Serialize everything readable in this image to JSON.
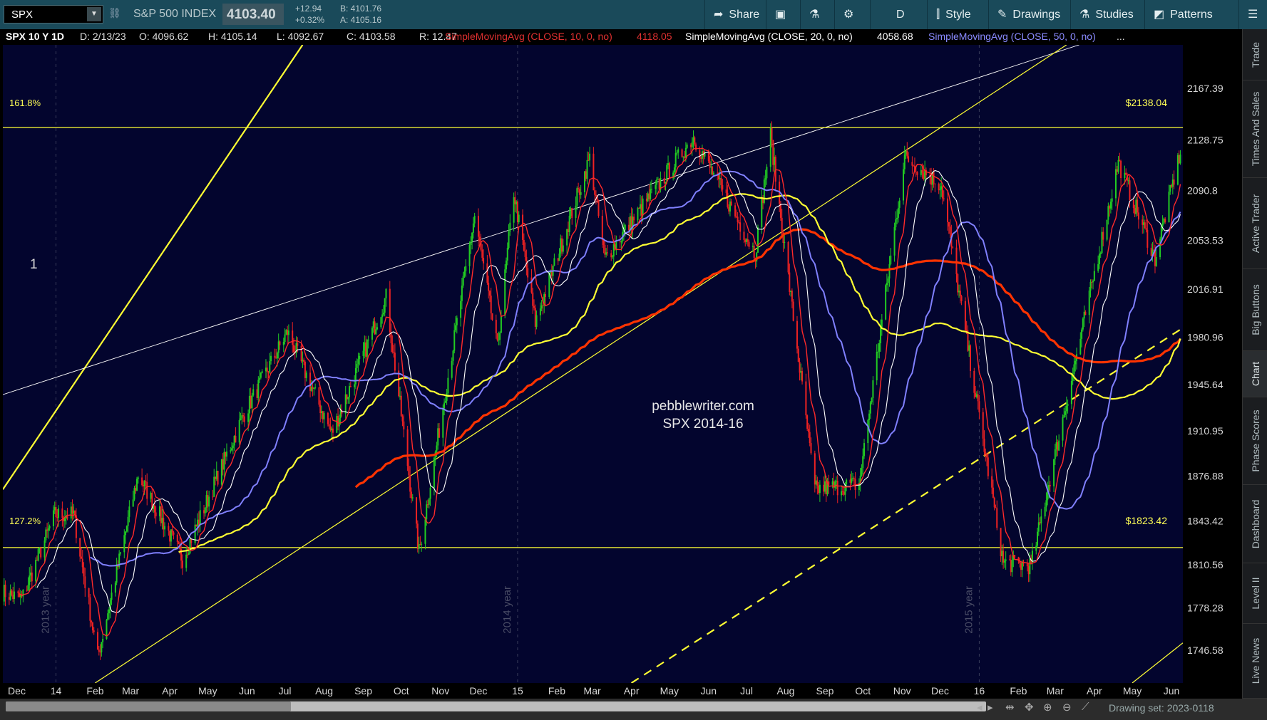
{
  "toolbar": {
    "symbol": "SPX",
    "index_name": "S&P 500 INDEX",
    "last": "4103.40",
    "change": "+12.94",
    "change_pct": "+0.32%",
    "bid": "B: 4101.76",
    "ask": "A: 4105.16",
    "buttons": {
      "share": "Share",
      "period": "D",
      "style": "Style",
      "drawings": "Drawings",
      "studies": "Studies",
      "patterns": "Patterns"
    }
  },
  "info_bar": {
    "symbol_period": "SPX 10 Y 1D",
    "date": "D: 2/13/23",
    "open": "O: 4096.62",
    "high": "H: 4105.14",
    "low": "L: 4092.67",
    "close": "C: 4103.58",
    "range": "R: 12.47",
    "sma10_label": "SimpleMovingAvg (CLOSE, 10, 0, no)",
    "sma10_value": "4118.05",
    "sma20_label": "SimpleMovingAvg (CLOSE, 20, 0, no)",
    "sma20_value": "4058.68",
    "sma50_label": "SimpleMovingAvg (CLOSE, 50, 0, no)",
    "more": "..."
  },
  "colors": {
    "sma10": "#ff2a2a",
    "sma20": "#ffffff",
    "sma50": "#8080ff",
    "sma100": "#ffff33",
    "sma200": "#ff3300",
    "fib": "#ffff33",
    "background": "#03052e"
  },
  "chart": {
    "fib_upper_pct": "161.8%",
    "fib_upper_price": "$2138.04",
    "fib_lower_pct": "127.2%",
    "fib_lower_price": "$1823.42",
    "marker_1": "1",
    "watermark_line1": "pebblewriter.com",
    "watermark_line2": "SPX 2014-16",
    "year_labels": [
      "2013 year",
      "2014 year",
      "2015 year"
    ]
  },
  "chart_data": {
    "type": "candlestick",
    "title": "SPX 10 Y 1D",
    "ylim": [
      1722,
      2200
    ],
    "y_ticks": [
      "2167.39",
      "2128.75",
      "2090.8",
      "2053.53",
      "2016.91",
      "1980.96",
      "1945.64",
      "1910.95",
      "1876.88",
      "1843.42",
      "1810.56",
      "1778.28",
      "1746.58"
    ],
    "x_ticks": [
      "Dec",
      "14",
      "Feb",
      "Mar",
      "Apr",
      "May",
      "Jun",
      "Jul",
      "Aug",
      "Sep",
      "Oct",
      "Nov",
      "Dec",
      "15",
      "Feb",
      "Mar",
      "Apr",
      "May",
      "Jun",
      "Jul",
      "Aug",
      "Sep",
      "Oct",
      "Nov",
      "Dec",
      "16",
      "Feb",
      "Mar",
      "Apr",
      "May",
      "Jun"
    ],
    "x_range": [
      "2013-11-20",
      "2016-06-10"
    ],
    "price_path": [
      [
        "2013-11-20",
        1790
      ],
      [
        "2013-12-05",
        1785
      ],
      [
        "2013-12-31",
        1848
      ],
      [
        "2014-01-15",
        1848
      ],
      [
        "2014-02-03",
        1741
      ],
      [
        "2014-03-07",
        1878
      ],
      [
        "2014-04-11",
        1815
      ],
      [
        "2014-05-30",
        1924
      ],
      [
        "2014-07-03",
        1985
      ],
      [
        "2014-08-07",
        1909
      ],
      [
        "2014-09-19",
        2011
      ],
      [
        "2014-10-15",
        1820
      ],
      [
        "2014-11-28",
        2072
      ],
      [
        "2014-12-16",
        1972
      ],
      [
        "2014-12-29",
        2090
      ],
      [
        "2015-01-15",
        1992
      ],
      [
        "2015-02-27",
        2115
      ],
      [
        "2015-03-11",
        2040
      ],
      [
        "2015-05-20",
        2131
      ],
      [
        "2015-07-08",
        2044
      ],
      [
        "2015-07-20",
        2132
      ],
      [
        "2015-08-24",
        1867
      ],
      [
        "2015-09-28",
        1871
      ],
      [
        "2015-11-03",
        2116
      ],
      [
        "2015-12-02",
        2095
      ],
      [
        "2016-01-20",
        1812
      ],
      [
        "2016-02-11",
        1810
      ],
      [
        "2016-04-20",
        2112
      ],
      [
        "2016-05-19",
        2040
      ],
      [
        "2016-06-08",
        2120
      ]
    ],
    "series": [
      {
        "name": "SimpleMovingAvg (CLOSE, 10, 0, no)",
        "values_ref": "price_path",
        "smoothing": 10
      },
      {
        "name": "SimpleMovingAvg (CLOSE, 20, 0, no)",
        "values_ref": "price_path",
        "smoothing": 20
      },
      {
        "name": "SimpleMovingAvg (CLOSE, 50, 0, no)",
        "values_ref": "price_path",
        "smoothing": 50
      }
    ],
    "lines": [
      {
        "style": "solid",
        "color": "#ffff33",
        "from": [
          "2013-11-20",
          1867
        ],
        "to": [
          "2014-07-15",
          2200
        ]
      },
      {
        "style": "solid",
        "color": "#ffffff",
        "from": [
          "2013-11-20",
          1938
        ],
        "to": [
          "2016-03-20",
          2200
        ]
      },
      {
        "style": "solid",
        "color": "#ffff33",
        "from": [
          "2014-02-01",
          1722
        ],
        "to": [
          "2016-03-10",
          2200
        ]
      },
      {
        "style": "dashed",
        "color": "#ffff33",
        "from": [
          "2015-04-01",
          1722
        ],
        "to": [
          "2016-06-10",
          1988
        ]
      },
      {
        "style": "solid",
        "color": "#ffff33",
        "from": [
          "2016-05-01",
          1722
        ],
        "to": [
          "2016-06-10",
          1752
        ]
      }
    ],
    "hlines": [
      {
        "price": 2138.04,
        "label": "$2138.04"
      },
      {
        "price": 1823.42,
        "label": "$1823.42"
      }
    ]
  },
  "right_tabs": [
    "Trade",
    "Times And Sales",
    "Active Trader",
    "Big Buttons",
    "Chart",
    "Phase Scores",
    "Dashboard",
    "Level II",
    "Live News"
  ],
  "bottom_bar": {
    "drawing_set": "Drawing set: 2023-0118"
  }
}
